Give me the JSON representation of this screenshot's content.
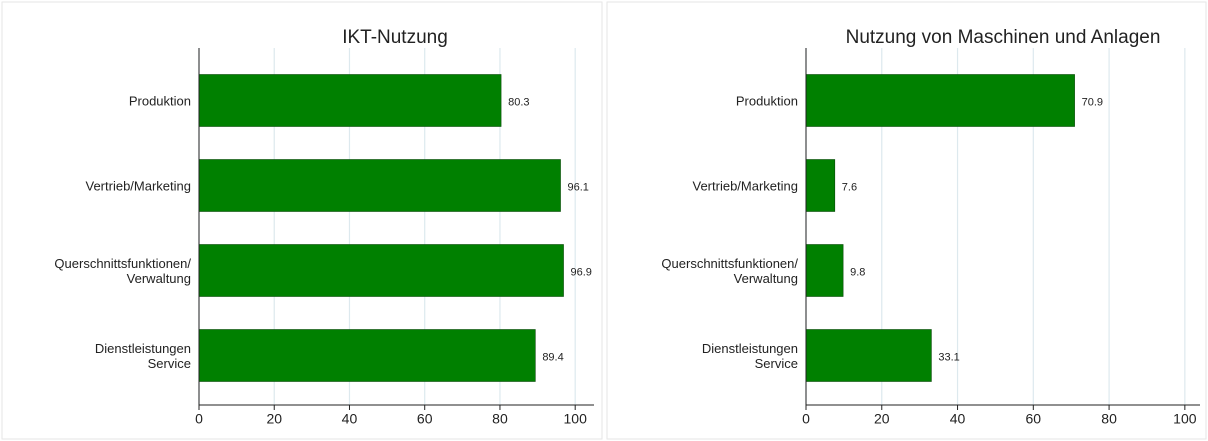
{
  "chart_data": [
    {
      "type": "bar",
      "orientation": "horizontal",
      "title": "IKT-Nutzung",
      "categories": [
        "Produktion",
        "Vertrieb/Marketing",
        "Querschnittsfunktionen/\nVerwaltung",
        "Dienstleistungen\nService"
      ],
      "values": [
        80.3,
        96.1,
        96.9,
        89.4
      ],
      "color": "#008000",
      "xlim": [
        0,
        105
      ],
      "xticks": [
        0,
        20,
        40,
        60,
        80,
        100
      ],
      "grid": true
    },
    {
      "type": "bar",
      "orientation": "horizontal",
      "title": "Nutzung von Maschinen und Anlagen",
      "categories": [
        "Produktion",
        "Vertrieb/Marketing",
        "Querschnittsfunktionen/\nVerwaltung",
        "Dienstleistungen\nService"
      ],
      "values": [
        70.9,
        7.6,
        9.8,
        33.1
      ],
      "color": "#008000",
      "xlim": [
        0,
        104
      ],
      "xticks": [
        0,
        20,
        40,
        60,
        80,
        100
      ],
      "grid": true
    }
  ]
}
